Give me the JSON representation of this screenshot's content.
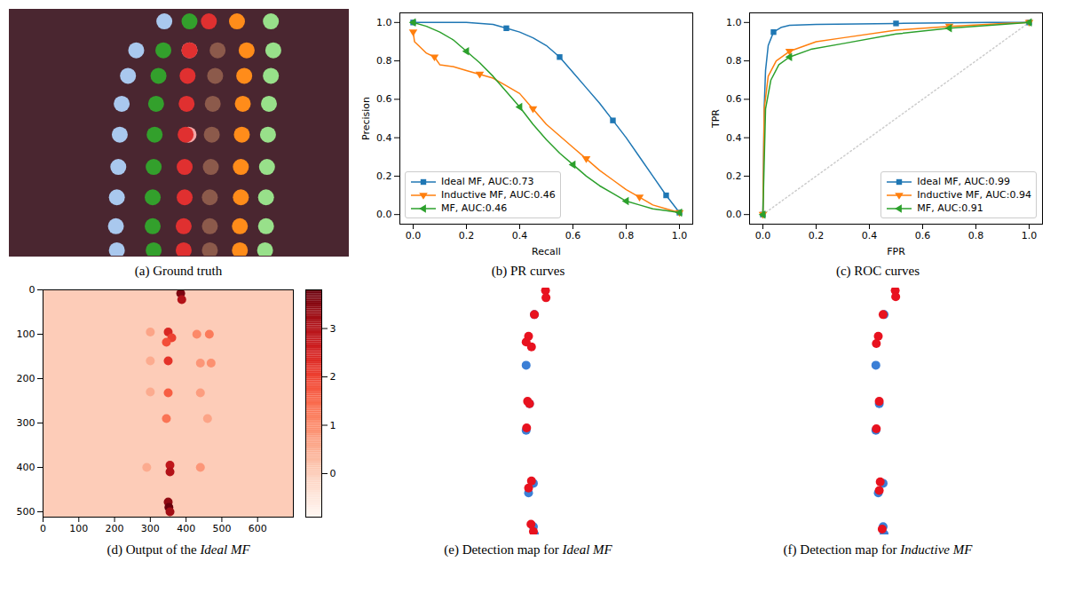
{
  "chart_data": [
    {
      "type": "image",
      "caption": "(a) Ground truth",
      "xlim": [
        0,
        700
      ],
      "ylim": [
        512,
        0
      ],
      "tick_labels": false,
      "series": [
        {
          "color": "#a9c8ee",
          "x": [
            320,
            262,
            245,
            232,
            228,
            225,
            222,
            220,
            222
          ],
          "values": [
            25,
            85,
            138,
            196,
            260,
            327,
            390,
            450,
            500
          ]
        },
        {
          "color": "#33a02c",
          "x": [
            372,
            318,
            308,
            303,
            300,
            298,
            296,
            296,
            298
          ],
          "values": [
            25,
            85,
            138,
            196,
            260,
            327,
            390,
            450,
            500
          ]
        },
        {
          "color": "#f4a6a6",
          "x": [
            372,
            370
          ],
          "values": [
            85,
            260
          ]
        },
        {
          "color": "#e03030",
          "x": [
            412,
            372,
            368,
            366,
            364,
            362,
            362,
            360,
            360
          ],
          "values": [
            25,
            85,
            138,
            196,
            260,
            327,
            390,
            450,
            500
          ]
        },
        {
          "color": "#8c5a4b",
          "x": [
            430,
            425,
            420,
            418,
            416,
            414,
            414,
            414
          ],
          "values": [
            85,
            138,
            196,
            260,
            327,
            390,
            450,
            500
          ]
        },
        {
          "color": "#ff8c1a",
          "x": [
            470,
            490,
            485,
            482,
            480,
            478,
            478,
            476,
            476
          ],
          "values": [
            25,
            85,
            138,
            196,
            260,
            327,
            390,
            450,
            500
          ]
        },
        {
          "color": "#98e08a",
          "x": [
            540,
            545,
            540,
            536,
            534,
            532,
            530,
            530,
            528
          ],
          "values": [
            25,
            85,
            138,
            196,
            260,
            327,
            390,
            450,
            500
          ]
        }
      ]
    },
    {
      "type": "line",
      "caption": "(b) PR curves",
      "x_label": "Recall",
      "y_label": "Precision",
      "xlim": [
        -0.05,
        1.05
      ],
      "ylim": [
        -0.05,
        1.05
      ],
      "xticks": [
        {
          "value": 0,
          "label": "0.0"
        },
        0.2,
        0.4,
        0.6,
        0.8,
        {
          "value": 1,
          "label": "1.0"
        }
      ],
      "yticks": [
        {
          "value": 0,
          "label": "0.0"
        },
        0.2,
        0.4,
        0.6,
        0.8,
        {
          "value": 1,
          "label": "1.0"
        }
      ],
      "legend": "lower left",
      "series": [
        {
          "name": "Ideal MF, AUC:0.73",
          "color": "#1f77b4",
          "marker": "square",
          "line_style": "solid",
          "x": [
            0,
            0.1,
            0.2,
            0.3,
            0.35,
            0.4,
            0.45,
            0.5,
            0.55,
            0.6,
            0.65,
            0.7,
            0.75,
            0.8,
            0.85,
            0.9,
            0.95,
            1.0
          ],
          "values": [
            1.0,
            1.0,
            1.0,
            0.99,
            0.97,
            0.95,
            0.92,
            0.88,
            0.82,
            0.74,
            0.66,
            0.58,
            0.49,
            0.4,
            0.3,
            0.2,
            0.1,
            0.01
          ]
        },
        {
          "name": "Inductive MF, AUC:0.46",
          "color": "#ff7f0e",
          "marker": "triangle_down",
          "line_style": "solid",
          "x": [
            0,
            0.005,
            0.02,
            0.05,
            0.08,
            0.1,
            0.15,
            0.2,
            0.25,
            0.3,
            0.35,
            0.4,
            0.45,
            0.5,
            0.55,
            0.6,
            0.65,
            0.7,
            0.75,
            0.8,
            0.85,
            0.9,
            0.95,
            1.0
          ],
          "values": [
            0.95,
            0.9,
            0.88,
            0.84,
            0.82,
            0.78,
            0.77,
            0.75,
            0.73,
            0.71,
            0.67,
            0.63,
            0.55,
            0.47,
            0.41,
            0.35,
            0.29,
            0.23,
            0.18,
            0.13,
            0.09,
            0.05,
            0.03,
            0.01
          ]
        },
        {
          "name": "MF, AUC:0.46",
          "color": "#2ca02c",
          "marker": "triangle_left",
          "line_style": "solid",
          "x": [
            0,
            0.05,
            0.1,
            0.15,
            0.2,
            0.25,
            0.3,
            0.35,
            0.4,
            0.45,
            0.5,
            0.55,
            0.6,
            0.65,
            0.7,
            0.75,
            0.8,
            0.85,
            0.9,
            0.95,
            1.0
          ],
          "values": [
            1.0,
            0.98,
            0.95,
            0.91,
            0.85,
            0.79,
            0.72,
            0.64,
            0.56,
            0.47,
            0.39,
            0.32,
            0.26,
            0.2,
            0.15,
            0.11,
            0.07,
            0.05,
            0.03,
            0.02,
            0.01
          ]
        }
      ]
    },
    {
      "type": "line",
      "caption": "(c) ROC curves",
      "x_label": "FPR",
      "y_label": "TPR",
      "xlim": [
        -0.05,
        1.05
      ],
      "ylim": [
        -0.05,
        1.05
      ],
      "xticks": [
        {
          "value": 0,
          "label": "0.0"
        },
        0.2,
        0.4,
        0.6,
        0.8,
        {
          "value": 1,
          "label": "1.0"
        }
      ],
      "yticks": [
        {
          "value": 0,
          "label": "0.0"
        },
        0.2,
        0.4,
        0.6,
        0.8,
        {
          "value": 1,
          "label": "1.0"
        }
      ],
      "legend": "lower right",
      "series": [
        {
          "color": "#cccccc",
          "line_style": "dotted",
          "x": [
            0,
            1
          ],
          "values": [
            0,
            1
          ]
        },
        {
          "name": "Ideal MF, AUC:0.99",
          "color": "#1f77b4",
          "marker": "square",
          "line_style": "solid",
          "x": [
            0,
            0.005,
            0.01,
            0.02,
            0.04,
            0.07,
            0.1,
            0.2,
            0.5,
            0.85,
            1.0
          ],
          "values": [
            0,
            0.56,
            0.75,
            0.88,
            0.95,
            0.975,
            0.985,
            0.99,
            0.995,
            1.0,
            1.0
          ]
        },
        {
          "name": "Inductive MF, AUC:0.94",
          "color": "#ff7f0e",
          "marker": "triangle_down",
          "line_style": "solid",
          "x": [
            0,
            0.005,
            0.02,
            0.05,
            0.1,
            0.2,
            0.3,
            0.5,
            0.7,
            0.9,
            1.0
          ],
          "values": [
            0,
            0.55,
            0.72,
            0.8,
            0.85,
            0.9,
            0.92,
            0.96,
            0.98,
            0.995,
            1.0
          ]
        },
        {
          "name": "MF, AUC:0.91",
          "color": "#2ca02c",
          "marker": "triangle_left",
          "line_style": "solid",
          "x": [
            0,
            0.01,
            0.03,
            0.06,
            0.1,
            0.18,
            0.3,
            0.5,
            0.7,
            0.9,
            1.0
          ],
          "values": [
            0,
            0.55,
            0.7,
            0.78,
            0.82,
            0.86,
            0.89,
            0.94,
            0.97,
            0.99,
            1.0
          ]
        }
      ]
    },
    {
      "type": "heatmap",
      "caption": "(d) Output of the",
      "caption_italic": "Ideal MF",
      "xlim": [
        0,
        700
      ],
      "ylim": [
        512,
        0
      ],
      "xticks": [
        0,
        100,
        200,
        300,
        400,
        500,
        600
      ],
      "yticks": [
        0,
        100,
        200,
        300,
        400,
        500
      ],
      "color": "Reds",
      "background": 0,
      "cells": {
        "x": [
          385,
          388,
          350,
          360,
          345,
          430,
          465,
          350,
          440,
          470,
          350,
          440,
          345,
          460,
          355,
          355,
          440,
          350,
          352,
          355,
          300,
          300,
          290,
          300
        ],
        "y": [
          8,
          22,
          95,
          108,
          118,
          100,
          100,
          160,
          165,
          165,
          232,
          232,
          290,
          290,
          395,
          410,
          400,
          478,
          490,
          500,
          95,
          230,
          400,
          160
        ],
        "values": [
          3.6,
          3.0,
          2.4,
          2.0,
          1.8,
          1.0,
          1.2,
          2.2,
          0.8,
          0.9,
          1.6,
          0.7,
          1.3,
          0.6,
          2.8,
          3.0,
          0.8,
          3.4,
          3.8,
          3.2,
          0.6,
          0.5,
          0.5,
          0.5
        ]
      },
      "colorbar": {
        "range": [
          -0.9,
          3.8
        ],
        "ticks": [
          0,
          1,
          2,
          3
        ]
      }
    },
    {
      "type": "scatter",
      "caption": "(e) Detection map for",
      "caption_italic": "Ideal MF",
      "xlim": [
        0,
        700
      ],
      "ylim": [
        512,
        0
      ],
      "tick_labels": false,
      "series": [
        {
          "color": "#3b7fd6",
          "x": [
            362,
            345,
            352,
            345,
            360,
            350,
            360,
            362
          ],
          "values": [
            55,
            160,
            240,
            295,
            405,
            425,
            495,
            510
          ]
        },
        {
          "color": "#e8121f",
          "x": [
            385,
            386,
            362,
            350,
            345,
            356,
            348,
            352,
            346,
            356,
            350,
            355,
            360
          ],
          "values": [
            5,
            20,
            55,
            100,
            112,
            122,
            235,
            240,
            290,
            400,
            415,
            490,
            505
          ]
        }
      ]
    },
    {
      "type": "scatter",
      "caption": "(f) Detection map for",
      "caption_italic": "Inductive MF",
      "xlim": [
        0,
        700
      ],
      "ylim": [
        512,
        0
      ],
      "tick_labels": false,
      "series": [
        {
          "color": "#3b7fd6",
          "x": [
            362,
            345,
            352,
            345,
            360,
            350,
            360,
            362
          ],
          "values": [
            55,
            160,
            240,
            295,
            405,
            425,
            495,
            510
          ]
        },
        {
          "color": "#e8121f",
          "x": [
            385,
            386,
            360,
            350,
            346,
            352,
            346,
            354,
            352,
            358
          ],
          "values": [
            5,
            18,
            55,
            100,
            115,
            235,
            292,
            402,
            420,
            500
          ]
        }
      ]
    }
  ]
}
